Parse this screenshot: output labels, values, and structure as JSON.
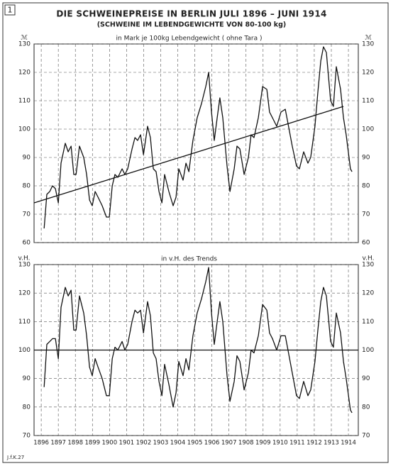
{
  "figure_number": "1",
  "title": "DIE SCHWEINEPREISE IN BERLIN JULI 1896 – JUNI 1914",
  "subtitle": "(SCHWEINE IM LEBENDGEWICHTE VON 80-100 kg)",
  "credit": "J.f.K.27",
  "chart_data": [
    {
      "type": "line",
      "annotation": "in Mark je 100kg Lebendgewicht ( ohne Tara )",
      "yunit": "ℳ",
      "xlim": [
        1895.58,
        1914.58
      ],
      "xticks": [
        1896,
        1897,
        1898,
        1899,
        1900,
        1901,
        1902,
        1903,
        1904,
        1905,
        1906,
        1907,
        1908,
        1909,
        1910,
        1911,
        1912,
        1913,
        1914
      ],
      "ylim": [
        60,
        130
      ],
      "yticks": [
        60,
        70,
        80,
        90,
        100,
        110,
        120,
        130
      ],
      "grid": true,
      "series": [
        {
          "color": "#111111",
          "x": [
            1896.17,
            1896.33,
            1896.5,
            1896.66,
            1896.83,
            1897.0,
            1897.16,
            1897.41,
            1897.58,
            1897.75,
            1897.91,
            1898.04,
            1898.24,
            1898.49,
            1898.66,
            1898.83,
            1898.99,
            1899.16,
            1899.33,
            1899.57,
            1899.82,
            1899.99,
            1900.16,
            1900.32,
            1900.49,
            1900.74,
            1900.9,
            1901.07,
            1901.32,
            1901.49,
            1901.65,
            1901.82,
            1901.99,
            1902.23,
            1902.4,
            1902.57,
            1902.73,
            1902.9,
            1903.07,
            1903.23,
            1903.48,
            1903.73,
            1903.9,
            1904.06,
            1904.31,
            1904.48,
            1904.65,
            1904.89,
            1905.14,
            1905.39,
            1905.64,
            1905.81,
            1905.98,
            1906.14,
            1906.31,
            1906.47,
            1906.64,
            1906.89,
            1907.06,
            1907.31,
            1907.47,
            1907.64,
            1907.89,
            1908.14,
            1908.3,
            1908.47,
            1908.72,
            1908.97,
            1909.22,
            1909.38,
            1909.55,
            1909.8,
            1910.05,
            1910.3,
            1910.46,
            1910.71,
            1910.96,
            1911.13,
            1911.38,
            1911.63,
            1911.79,
            1912.04,
            1912.21,
            1912.38,
            1912.54,
            1912.71,
            1912.96,
            1913.12,
            1913.29,
            1913.54,
            1913.71,
            1913.87,
            1914.12,
            1914.21
          ],
          "values": [
            65,
            77,
            78,
            80,
            79,
            74,
            88,
            95,
            92,
            94,
            84,
            84,
            94,
            90,
            84,
            75,
            73,
            78,
            76,
            73,
            69,
            69,
            80,
            84,
            83,
            86,
            84,
            86,
            93,
            97,
            96,
            98,
            91,
            101,
            97,
            86,
            85,
            78,
            74,
            84,
            78,
            73,
            76,
            86,
            82,
            88,
            85,
            96,
            104,
            109,
            115,
            120,
            106,
            96,
            104,
            111,
            104,
            87,
            78,
            86,
            94,
            93,
            84,
            90,
            98,
            97,
            104,
            115,
            114,
            106,
            104,
            101,
            106,
            107,
            102,
            94,
            87,
            86,
            92,
            88,
            90,
            101,
            113,
            124,
            129,
            127,
            110,
            108,
            122,
            114,
            104,
            98,
            86,
            85
          ]
        },
        {
          "color": "#111111",
          "x": [
            1895.58,
            1913.71
          ],
          "values": [
            74,
            108
          ]
        }
      ]
    },
    {
      "type": "line",
      "annotation": "in v.H. des Trends",
      "yunit": "v.H.",
      "xlim": [
        1895.58,
        1914.58
      ],
      "xticks": [
        1896,
        1897,
        1898,
        1899,
        1900,
        1901,
        1902,
        1903,
        1904,
        1905,
        1906,
        1907,
        1908,
        1909,
        1910,
        1911,
        1912,
        1913,
        1914
      ],
      "ylim": [
        70,
        130
      ],
      "yticks": [
        70,
        80,
        90,
        100,
        110,
        120,
        130
      ],
      "grid": true,
      "hline": 100,
      "series": [
        {
          "color": "#111111",
          "x": [
            1896.17,
            1896.33,
            1896.5,
            1896.66,
            1896.83,
            1897.0,
            1897.16,
            1897.41,
            1897.58,
            1897.75,
            1897.91,
            1898.04,
            1898.24,
            1898.49,
            1898.66,
            1898.83,
            1898.99,
            1899.16,
            1899.33,
            1899.57,
            1899.82,
            1899.99,
            1900.16,
            1900.32,
            1900.49,
            1900.74,
            1900.9,
            1901.07,
            1901.32,
            1901.49,
            1901.65,
            1901.82,
            1901.99,
            1902.23,
            1902.4,
            1902.57,
            1902.73,
            1902.9,
            1903.07,
            1903.23,
            1903.48,
            1903.73,
            1903.9,
            1904.06,
            1904.31,
            1904.48,
            1904.65,
            1904.89,
            1905.14,
            1905.39,
            1905.64,
            1905.81,
            1905.98,
            1906.14,
            1906.31,
            1906.47,
            1906.64,
            1906.89,
            1907.06,
            1907.31,
            1907.47,
            1907.64,
            1907.89,
            1908.14,
            1908.3,
            1908.47,
            1908.72,
            1908.97,
            1909.22,
            1909.38,
            1909.55,
            1909.8,
            1910.05,
            1910.3,
            1910.46,
            1910.71,
            1910.96,
            1911.13,
            1911.38,
            1911.63,
            1911.79,
            1912.04,
            1912.21,
            1912.38,
            1912.54,
            1912.71,
            1912.96,
            1913.12,
            1913.29,
            1913.54,
            1913.71,
            1913.87,
            1914.12,
            1914.21
          ],
          "values": [
            87,
            102,
            103,
            104,
            104,
            97,
            115,
            122,
            119,
            121,
            107,
            107,
            119,
            113,
            105,
            94,
            91,
            97,
            94,
            90,
            84,
            84,
            97,
            101,
            100,
            103,
            100,
            102,
            110,
            114,
            113,
            114,
            106,
            117,
            112,
            99,
            97,
            89,
            84,
            95,
            88,
            80,
            85,
            96,
            91,
            97,
            93,
            105,
            113,
            118,
            124,
            129,
            113,
            102,
            110,
            117,
            110,
            91,
            82,
            89,
            98,
            96,
            86,
            92,
            100,
            99,
            105,
            116,
            114,
            106,
            104,
            100,
            105,
            105,
            100,
            92,
            84,
            83,
            89,
            84,
            86,
            96,
            107,
            117,
            122,
            119,
            103,
            101,
            113,
            106,
            96,
            90,
            79,
            78
          ]
        }
      ]
    }
  ]
}
